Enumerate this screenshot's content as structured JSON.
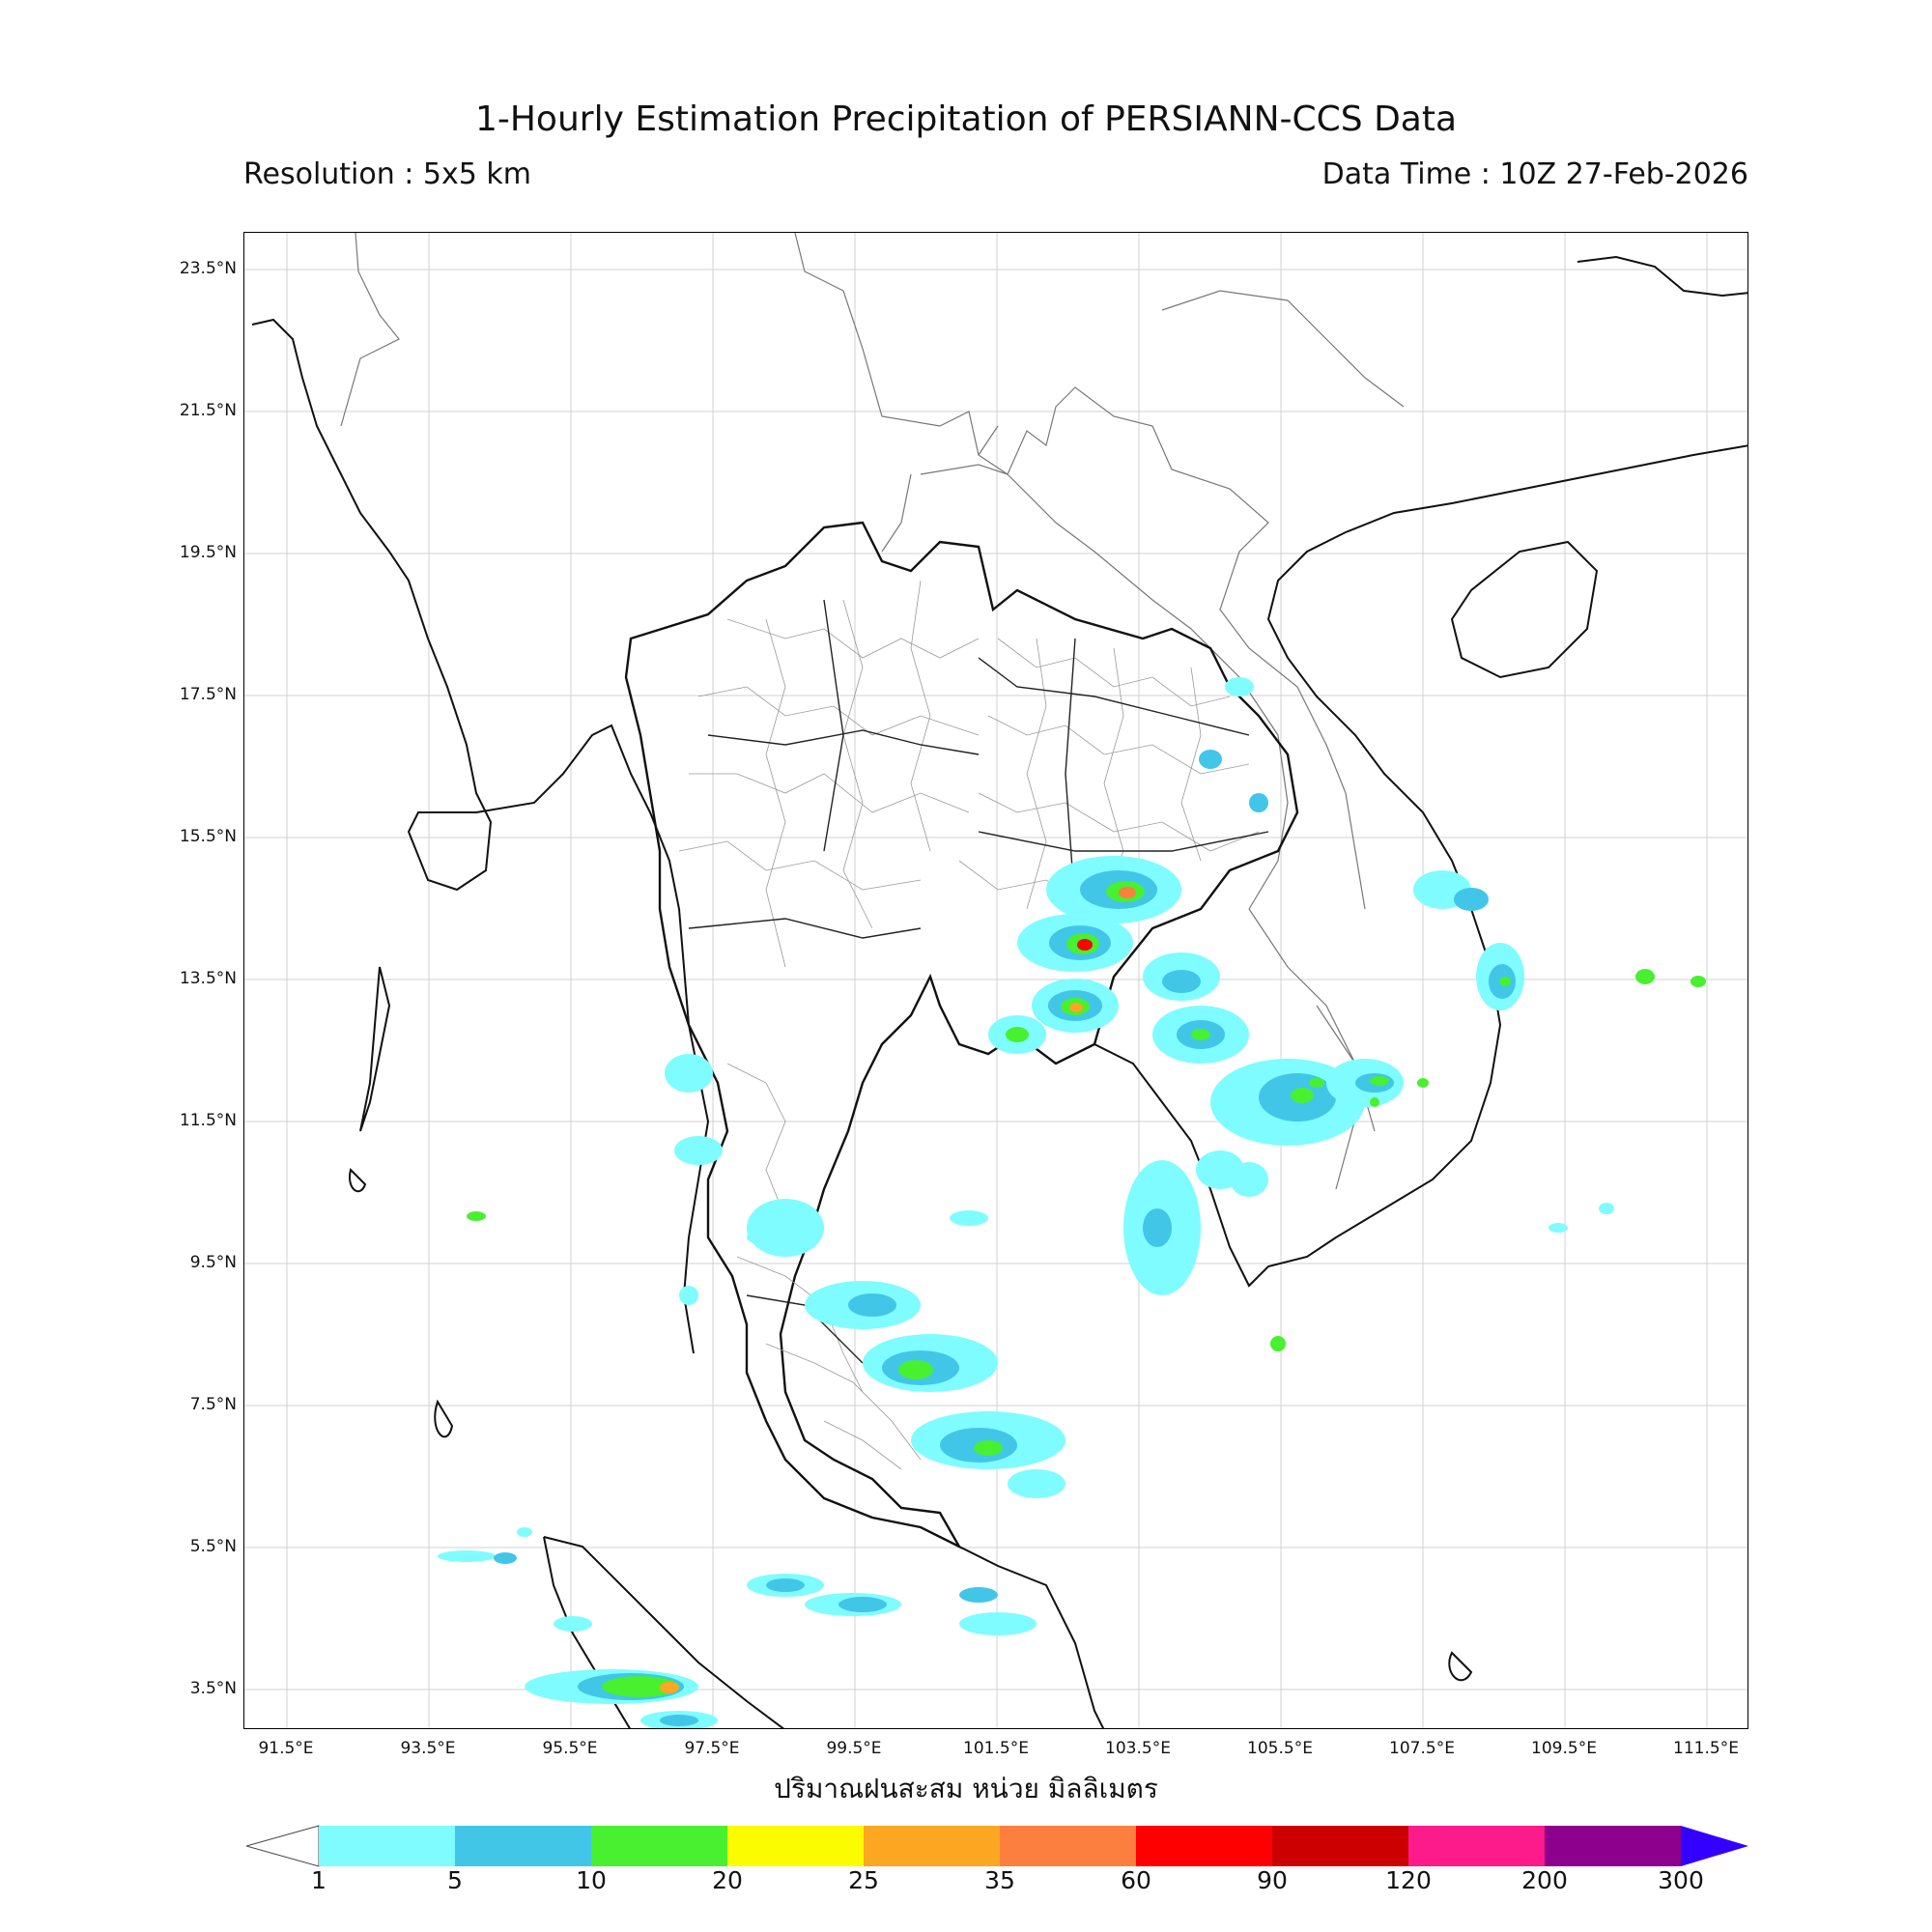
{
  "header": {
    "title": "1-Hourly Estimation Precipitation of PERSIANN-CCS Data",
    "resolution": "Resolution : 5x5 km",
    "data_time": "Data Time : 10Z 27-Feb-2026"
  },
  "axes": {
    "lat_labels": [
      "23.5°N",
      "21.5°N",
      "19.5°N",
      "17.5°N",
      "15.5°N",
      "13.5°N",
      "11.5°N",
      "9.5°N",
      "7.5°N",
      "5.5°N",
      "3.5°N"
    ],
    "lon_labels": [
      "91.5°E",
      "93.5°E",
      "95.5°E",
      "97.5°E",
      "99.5°E",
      "101.5°E",
      "103.5°E",
      "105.5°E",
      "107.5°E",
      "109.5°E",
      "111.5°E"
    ],
    "xlabel": "ปริมาณฝนสะสม หน่วย มิลลิเมตร"
  },
  "colorbar": {
    "ticks": [
      "1",
      "5",
      "10",
      "20",
      "25",
      "35",
      "60",
      "90",
      "120",
      "200",
      "300"
    ],
    "colors": [
      "#7ffcff",
      "#41c6e8",
      "#48f030",
      "#fcfc00",
      "#fca622",
      "#fd7f3f",
      "#fe0000",
      "#cc0000",
      "#fd1a8b",
      "#8d008d"
    ],
    "extend_color": "#3300ff"
  },
  "map": {
    "extent": {
      "lon_min": 90.8,
      "lon_max": 112.0,
      "lat_min": 2.5,
      "lat_max": 24.0
    },
    "gridlines": true
  }
}
